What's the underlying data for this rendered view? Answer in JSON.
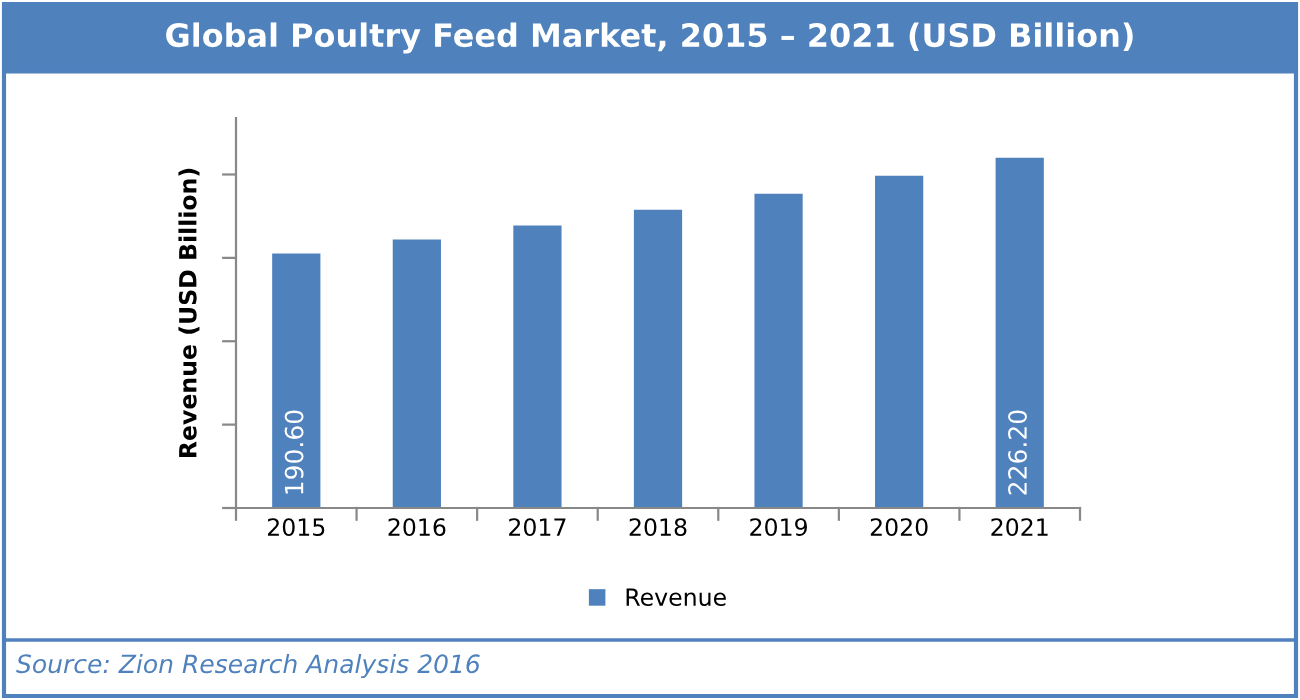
{
  "chart_data": {
    "type": "bar",
    "title": "Global Poultry Feed Market, 2015 – 2021 (USD Billion)",
    "ylabel": "Revenue (USD Billion)",
    "categories": [
      "2015",
      "2016",
      "2017",
      "2018",
      "2019",
      "2020",
      "2021"
    ],
    "series": [
      {
        "name": "Revenue",
        "color": "#4f81bd",
        "values": [
          190.6,
          195.8,
          201.0,
          206.9,
          212.8,
          219.5,
          226.2
        ],
        "value_labels": [
          "190.60",
          null,
          null,
          null,
          null,
          null,
          "226.20"
        ]
      }
    ],
    "ylim": [
      96,
      241
    ],
    "yticks": [
      {
        "value": 96,
        "label": null
      },
      {
        "value": 127,
        "label": null
      },
      {
        "value": 158,
        "label": null
      },
      {
        "value": 189,
        "label": null
      },
      {
        "value": 220,
        "label": null
      }
    ],
    "legend": "bottom",
    "grid": false,
    "annotations": [
      "Source: Zion Research Analysis 2016"
    ]
  }
}
